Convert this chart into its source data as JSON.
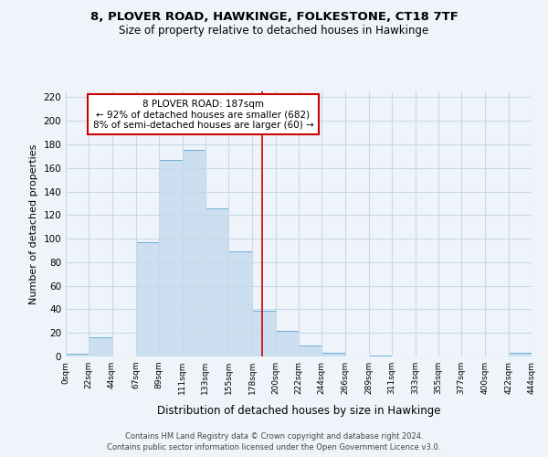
{
  "title": "8, PLOVER ROAD, HAWKINGE, FOLKESTONE, CT18 7TF",
  "subtitle": "Size of property relative to detached houses in Hawkinge",
  "xlabel": "Distribution of detached houses by size in Hawkinge",
  "ylabel": "Number of detached properties",
  "property_line": 187,
  "annotation_title": "8 PLOVER ROAD: 187sqm",
  "annotation_line1": "← 92% of detached houses are smaller (682)",
  "annotation_line2": "8% of semi-detached houses are larger (60) →",
  "bin_edges": [
    0,
    22,
    44,
    67,
    89,
    111,
    133,
    155,
    178,
    200,
    222,
    244,
    266,
    289,
    311,
    333,
    355,
    377,
    400,
    422,
    444
  ],
  "bin_counts": [
    2,
    16,
    0,
    97,
    167,
    175,
    126,
    89,
    39,
    22,
    9,
    3,
    0,
    1,
    0,
    0,
    0,
    0,
    0,
    3
  ],
  "bar_facecolor": "#ccdff0",
  "bar_edgecolor": "#6aaed6",
  "vline_color": "#cc0000",
  "annotation_box_edgecolor": "#cc0000",
  "grid_color": "#c8d8e8",
  "background_color": "#eef4fa",
  "plot_bg_color": "#eef4fa",
  "ylim": [
    0,
    225
  ],
  "yticks": [
    0,
    20,
    40,
    60,
    80,
    100,
    120,
    140,
    160,
    180,
    200,
    220
  ],
  "tick_labels": [
    "0sqm",
    "22sqm",
    "44sqm",
    "67sqm",
    "89sqm",
    "111sqm",
    "133sqm",
    "155sqm",
    "178sqm",
    "200sqm",
    "222sqm",
    "244sqm",
    "266sqm",
    "289sqm",
    "311sqm",
    "333sqm",
    "355sqm",
    "377sqm",
    "400sqm",
    "422sqm",
    "444sqm"
  ],
  "footer_line1": "Contains HM Land Registry data © Crown copyright and database right 2024.",
  "footer_line2": "Contains public sector information licensed under the Open Government Licence v3.0."
}
